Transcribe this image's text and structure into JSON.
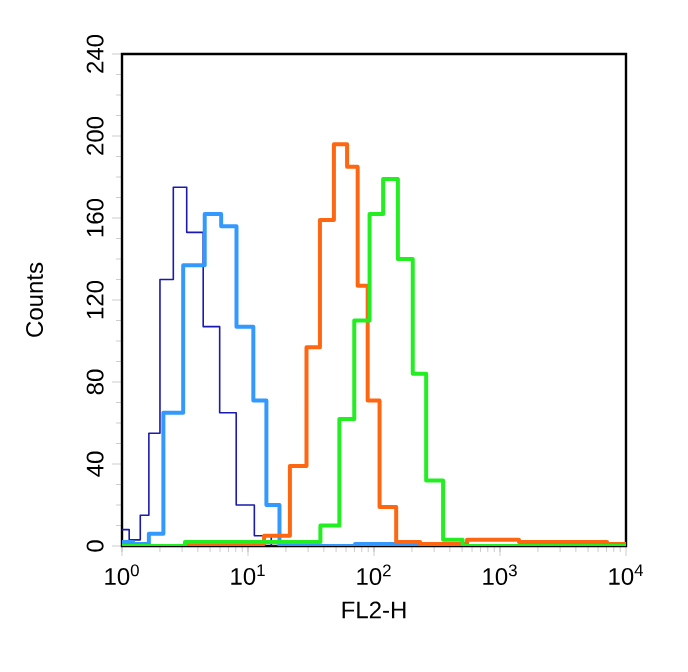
{
  "chart_data": {
    "type": "step",
    "xlabel": "FL2-H",
    "ylabel": "Counts",
    "log": "x",
    "xlim": [
      1,
      10000
    ],
    "ylim": [
      0,
      240
    ],
    "xticks": [
      {
        "value": 1,
        "label": "10$^{0}$"
      },
      {
        "value": 10,
        "label": "10$^{1}$"
      },
      {
        "value": 100,
        "label": "10$^{2}$"
      },
      {
        "value": 1000,
        "label": "10$^{3}$"
      },
      {
        "value": 10000,
        "label": "10$^{4}$"
      }
    ],
    "yticks": [
      0,
      40,
      80,
      120,
      160,
      200,
      240
    ],
    "grid": false,
    "series": [
      {
        "color": "#1a1ab0",
        "x": [
          1,
          1.3,
          1.5,
          1.78,
          2.25,
          2.9,
          3.67,
          5.3,
          6.7,
          9.7,
          13,
          18,
          30
        ],
        "values": [
          8,
          3,
          15,
          55,
          130,
          175,
          153,
          107,
          65,
          20,
          5,
          0,
          0
        ]
      },
      {
        "color": "#3399ff",
        "x": [
          1,
          1.5,
          1.78,
          2.55,
          3.67,
          5.6,
          6.7,
          9.8,
          12.4,
          15.8,
          20,
          50,
          100,
          1000,
          10000
        ],
        "values": [
          2,
          1,
          6,
          65,
          137,
          162,
          156,
          107,
          71,
          20,
          0,
          0,
          1,
          0,
          0
        ]
      },
      {
        "color": "#ff6611",
        "x": [
          1,
          10,
          18,
          25.7,
          33,
          42,
          55,
          68,
          81,
          98,
          125,
          180,
          300,
          1000,
          2000,
          5000,
          10000
        ],
        "values": [
          0,
          1,
          5,
          39,
          97,
          159,
          196,
          185,
          127,
          71,
          19,
          2,
          1,
          3,
          2,
          2,
          1
        ]
      },
      {
        "color": "#22ee22",
        "x": [
          1,
          10,
          30,
          47,
          60,
          81,
          105,
          133,
          180,
          229,
          294,
          425,
          600,
          1000,
          10000
        ],
        "values": [
          0,
          2,
          2,
          10,
          62,
          110,
          162,
          179,
          140,
          84,
          32,
          3,
          0,
          0,
          0
        ]
      }
    ]
  }
}
